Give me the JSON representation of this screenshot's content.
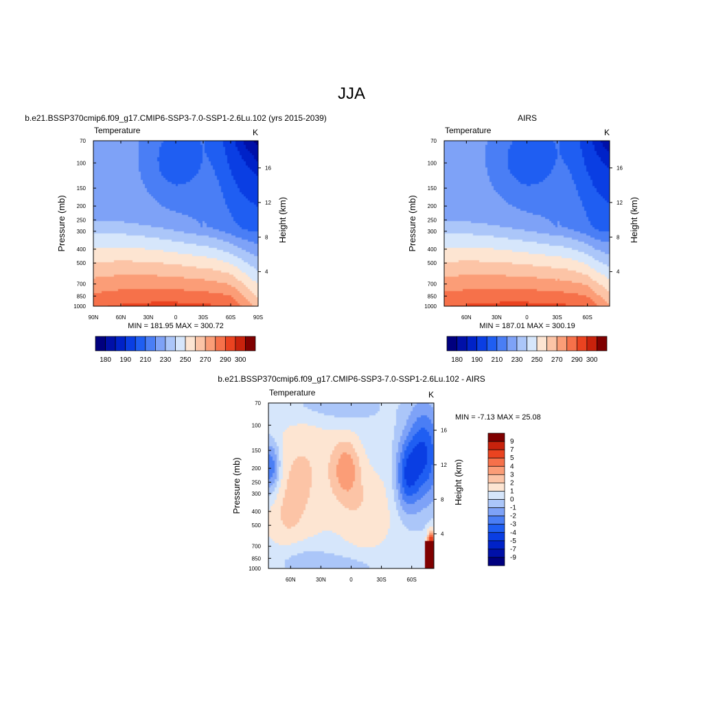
{
  "page": {
    "title": "JJA",
    "model_title": "b.e21.BSSP370cmip6.f09_g17.CMIP6-SSP3-7.0-SSP1-2.6Lu.102 (yrs 2015-2039)",
    "obs_title": "AIRS",
    "diff_title": "b.e21.BSSP370cmip6.f09_g17.CMIP6-SSP3-7.0-SSP1-2.6Lu.102 - AIRS"
  },
  "chart_data": [
    {
      "id": "model",
      "type": "heatmap",
      "variable_label": "Temperature",
      "unit_label": "K",
      "ylabel": "Pressure (mb)",
      "y2label": "Height (km)",
      "x_ticks": [
        "90N",
        "60N",
        "30N",
        "0",
        "30S",
        "60S",
        "90S"
      ],
      "x_range": [
        90,
        -90
      ],
      "y_ticks": [
        "70",
        "100",
        "150",
        "200",
        "250",
        "300",
        "400",
        "500",
        "700",
        "850",
        "1000"
      ],
      "y_range_mb": [
        1000,
        70
      ],
      "y2_ticks": [
        "4",
        "8",
        "12",
        "16"
      ],
      "stats": "MIN = 181.95  MAX = 300.72",
      "min": 181.95,
      "max": 300.72,
      "colorbar": {
        "orientation": "horizontal",
        "labels": [
          "180",
          "190",
          "210",
          "230",
          "250",
          "270",
          "290",
          "300"
        ],
        "levels": [
          180,
          185,
          190,
          200,
          210,
          220,
          230,
          240,
          250,
          260,
          270,
          280,
          290,
          295,
          300
        ],
        "colors": [
          "#00007f",
          "#0010a8",
          "#0022c8",
          "#0a3ee3",
          "#1f5ef2",
          "#4a7ef5",
          "#7ea2f7",
          "#abc6f9",
          "#d6e6fb",
          "#fde5d2",
          "#fcc4a6",
          "#fb9d77",
          "#f6714a",
          "#ea4320",
          "#c8220c",
          "#7f0000"
        ]
      }
    },
    {
      "id": "obs",
      "type": "heatmap",
      "variable_label": "Temperature",
      "unit_label": "K",
      "ylabel": "Pressure (mb)",
      "y2label": "Height (km)",
      "x_ticks": [
        "60N",
        "30N",
        "0",
        "30S",
        "60S"
      ],
      "x_range": [
        82,
        -82
      ],
      "y_ticks": [
        "70",
        "100",
        "150",
        "200",
        "250",
        "300",
        "400",
        "500",
        "700",
        "850",
        "1000"
      ],
      "y_range_mb": [
        1000,
        70
      ],
      "y2_ticks": [
        "4",
        "8",
        "12",
        "16"
      ],
      "stats": "MIN = 187.01  MAX = 300.19",
      "min": 187.01,
      "max": 300.19,
      "colorbar": {
        "orientation": "horizontal",
        "labels": [
          "180",
          "190",
          "210",
          "230",
          "250",
          "270",
          "290",
          "300"
        ],
        "levels": [
          180,
          185,
          190,
          200,
          210,
          220,
          230,
          240,
          250,
          260,
          270,
          280,
          290,
          295,
          300
        ],
        "colors": [
          "#00007f",
          "#0010a8",
          "#0022c8",
          "#0a3ee3",
          "#1f5ef2",
          "#4a7ef5",
          "#7ea2f7",
          "#abc6f9",
          "#d6e6fb",
          "#fde5d2",
          "#fcc4a6",
          "#fb9d77",
          "#f6714a",
          "#ea4320",
          "#c8220c",
          "#7f0000"
        ]
      }
    },
    {
      "id": "diff",
      "type": "heatmap",
      "variable_label": "Temperature",
      "unit_label": "K",
      "ylabel": "Pressure (mb)",
      "y2label": "Height (km)",
      "x_ticks": [
        "60N",
        "30N",
        "0",
        "30S",
        "60S"
      ],
      "x_range": [
        82,
        -82
      ],
      "y_ticks": [
        "70",
        "100",
        "150",
        "200",
        "250",
        "300",
        "400",
        "500",
        "700",
        "850",
        "1000"
      ],
      "y_range_mb": [
        1000,
        70
      ],
      "y2_ticks": [
        "4",
        "8",
        "12",
        "16"
      ],
      "stats": "MIN =  -7.13  MAX =  25.08",
      "min": -7.13,
      "max": 25.08,
      "colorbar": {
        "orientation": "vertical",
        "labels": [
          "9",
          "7",
          "5",
          "4",
          "3",
          "2",
          "1",
          "0",
          "-1",
          "-2",
          "-3",
          "-4",
          "-5",
          "-7",
          "-9"
        ],
        "levels": [
          -9,
          -7,
          -5,
          -4,
          -3,
          -2,
          -1,
          0,
          1,
          2,
          3,
          4,
          5,
          7,
          9
        ],
        "colors": [
          "#00007f",
          "#0010a8",
          "#0022c8",
          "#0a3ee3",
          "#1f5ef2",
          "#4a7ef5",
          "#7ea2f7",
          "#abc6f9",
          "#d6e6fb",
          "#fde5d2",
          "#fcc4a6",
          "#fb9d77",
          "#f6714a",
          "#ea4320",
          "#c8220c",
          "#7f0000"
        ]
      }
    }
  ]
}
